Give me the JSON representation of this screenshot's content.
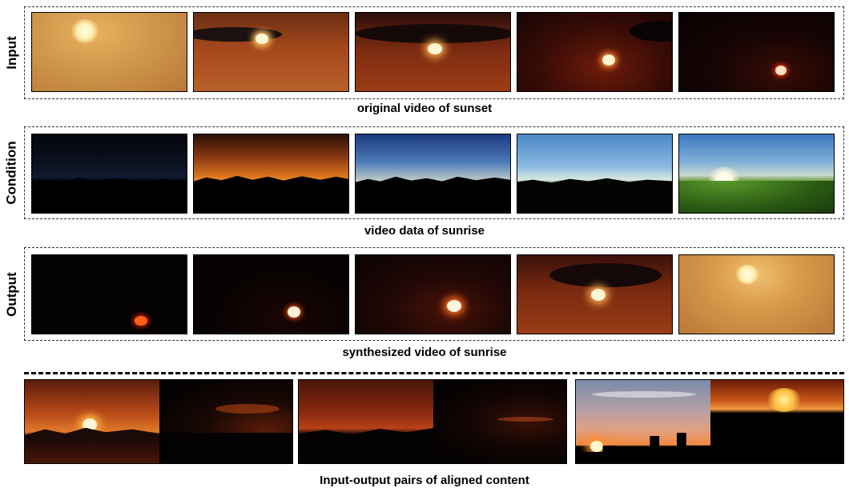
{
  "rows": [
    {
      "label": "Input",
      "caption": "original video of sunset"
    },
    {
      "label": "Condition",
      "caption": "video data of sunrise"
    },
    {
      "label": "Output",
      "caption": "synthesized video of sunrise"
    }
  ],
  "pairs_caption": "Input-output pairs of aligned content"
}
